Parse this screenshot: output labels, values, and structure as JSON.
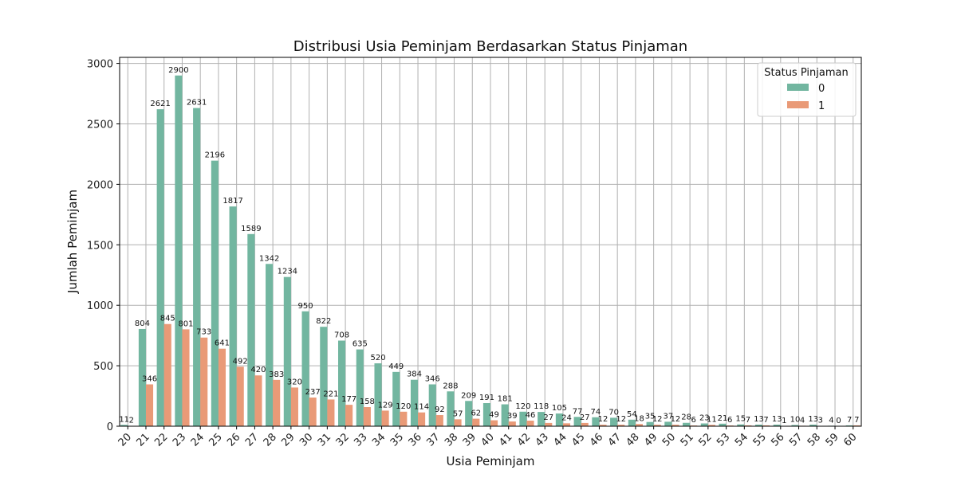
{
  "chart_data": {
    "type": "bar",
    "title": "Distribusi Usia Peminjam Berdasarkan Status Pinjaman",
    "xlabel": "Usia Peminjam",
    "ylabel": "Jumlah Peminjam",
    "ylim": [
      0,
      3050
    ],
    "yticks": [
      0,
      500,
      1000,
      1500,
      2000,
      2500,
      3000
    ],
    "grid": true,
    "legend": {
      "title": "Status Pinjaman",
      "placement": "top-right"
    },
    "categories": [
      "20",
      "21",
      "22",
      "23",
      "24",
      "25",
      "26",
      "27",
      "28",
      "29",
      "30",
      "31",
      "32",
      "33",
      "34",
      "35",
      "36",
      "37",
      "38",
      "39",
      "40",
      "41",
      "42",
      "43",
      "44",
      "45",
      "46",
      "47",
      "48",
      "49",
      "50",
      "51",
      "52",
      "53",
      "54",
      "55",
      "56",
      "57",
      "58",
      "59",
      "60"
    ],
    "series": [
      {
        "name": "0",
        "color": "#72b6a0",
        "values": [
          11,
          804,
          2621,
          2900,
          2631,
          2196,
          1817,
          1589,
          1342,
          1234,
          950,
          822,
          708,
          635,
          520,
          449,
          384,
          346,
          288,
          209,
          191,
          181,
          120,
          118,
          105,
          77,
          74,
          70,
          54,
          35,
          37,
          28,
          23,
          21,
          15,
          13,
          13,
          10,
          13,
          4,
          7
        ]
      },
      {
        "name": "1",
        "color": "#e99a77",
        "values": [
          2,
          346,
          845,
          801,
          733,
          641,
          492,
          420,
          383,
          320,
          237,
          221,
          177,
          158,
          129,
          120,
          114,
          92,
          57,
          62,
          49,
          39,
          46,
          27,
          24,
          27,
          12,
          12,
          18,
          12,
          12,
          6,
          11,
          6,
          7,
          7,
          1,
          4,
          3,
          0,
          7
        ]
      }
    ]
  }
}
